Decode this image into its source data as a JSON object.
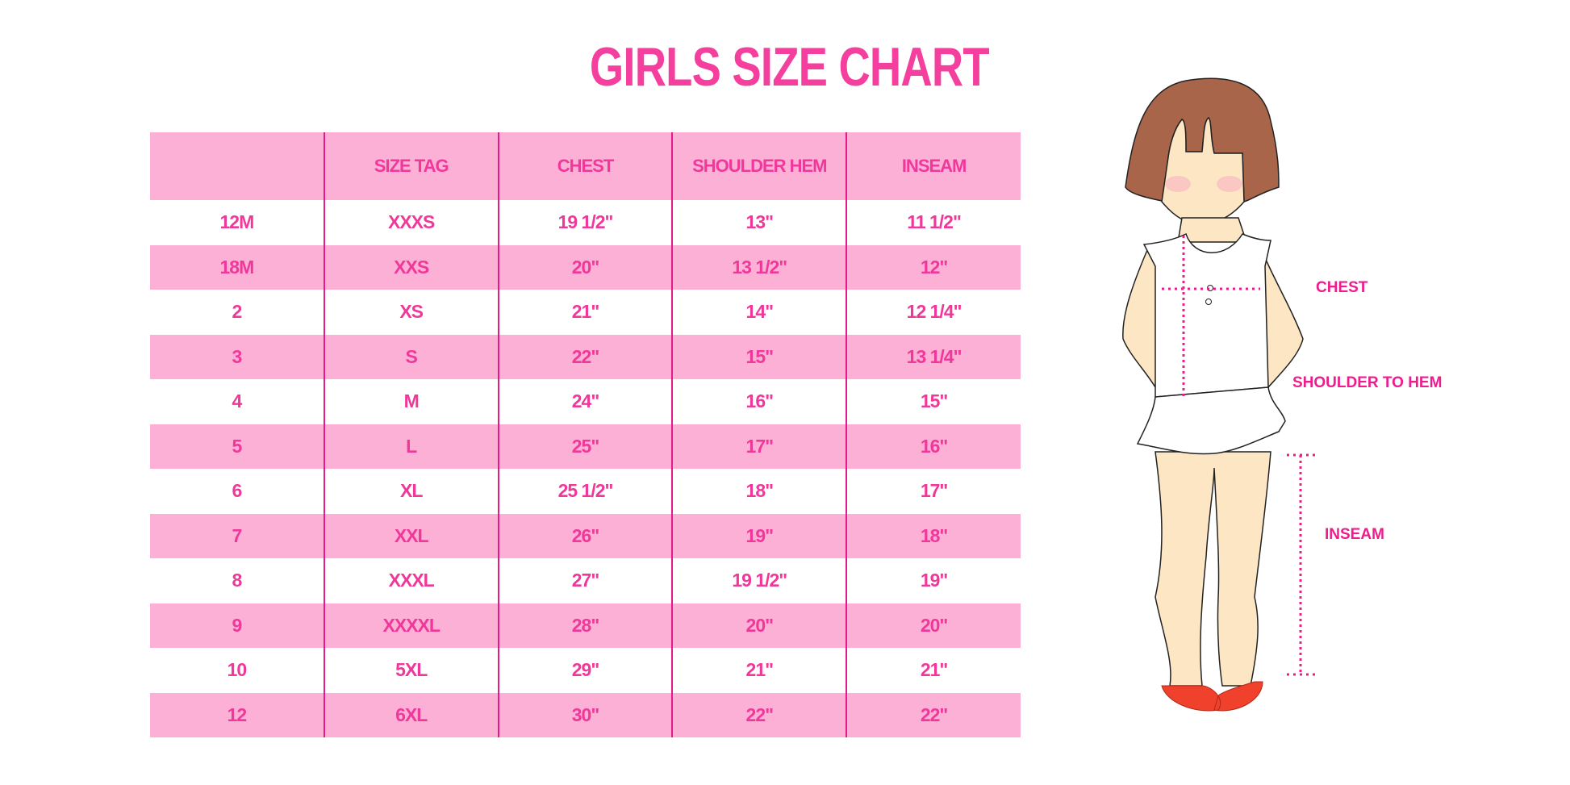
{
  "title": "GIRLS SIZE CHART",
  "table": {
    "headers": [
      "",
      "SIZE TAG",
      "CHEST",
      "SHOULDER HEM",
      "INSEAM"
    ],
    "rows": [
      [
        "12M",
        "XXXS",
        "19 1/2\"",
        "13\"",
        "11 1/2\""
      ],
      [
        "18M",
        "XXS",
        "20\"",
        "13 1/2\"",
        "12\""
      ],
      [
        "2",
        "XS",
        "21\"",
        "14\"",
        "12 1/4\""
      ],
      [
        "3",
        "S",
        "22\"",
        "15\"",
        "13 1/4\""
      ],
      [
        "4",
        "M",
        "24\"",
        "16\"",
        "15\""
      ],
      [
        "5",
        "L",
        "25\"",
        "17\"",
        "16\""
      ],
      [
        "6",
        "XL",
        "25 1/2\"",
        "18\"",
        "17\""
      ],
      [
        "7",
        "XXL",
        "26\"",
        "19\"",
        "18\""
      ],
      [
        "8",
        "XXXL",
        "27\"",
        "19 1/2\"",
        "19\""
      ],
      [
        "9",
        "XXXXL",
        "28\"",
        "20\"",
        "20\""
      ],
      [
        "10",
        "5XL",
        "29\"",
        "21\"",
        "21\""
      ],
      [
        "12",
        "6XL",
        "30\"",
        "22\"",
        "22\""
      ]
    ]
  },
  "illustration": {
    "labels": {
      "chest": "CHEST",
      "shoulder_to_hem": "SHOULDER TO HEM",
      "inseam": "INSEAM"
    }
  },
  "colors": {
    "accent": "#f43f9e",
    "header_bg": "#fdb0d6",
    "divider": "#e6198a",
    "hair": "#a8654a",
    "skin": "#fde6c4",
    "shoes": "#f0412c"
  }
}
